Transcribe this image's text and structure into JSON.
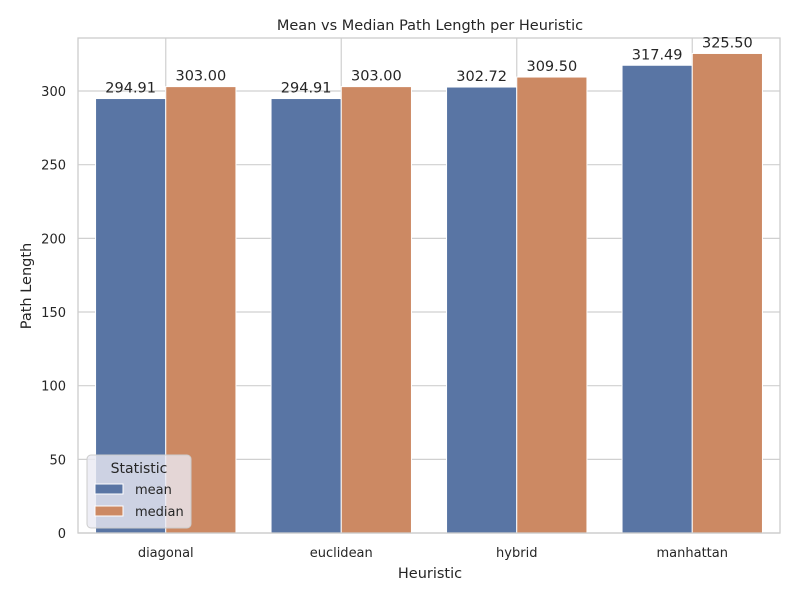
{
  "chart_data": {
    "type": "bar",
    "title": "Mean vs Median Path Length per Heuristic",
    "xlabel": "Heuristic",
    "ylabel": "Path Length",
    "categories": [
      "diagonal",
      "euclidean",
      "hybrid",
      "manhattan"
    ],
    "series": [
      {
        "name": "mean",
        "color": "#5975a4",
        "values": [
          294.91,
          294.91,
          302.72,
          317.49
        ],
        "labels": [
          "294.91",
          "294.91",
          "302.72",
          "317.49"
        ]
      },
      {
        "name": "median",
        "color": "#cc8963",
        "values": [
          303.0,
          303.0,
          309.5,
          325.5
        ],
        "labels": [
          "303.00",
          "303.00",
          "309.50",
          "325.50"
        ]
      }
    ],
    "ylim": [
      0,
      336
    ],
    "yticks": [
      0,
      50,
      100,
      150,
      200,
      250,
      300
    ],
    "grid": true,
    "legend": {
      "title": "Statistic",
      "position": "lower-left"
    }
  }
}
